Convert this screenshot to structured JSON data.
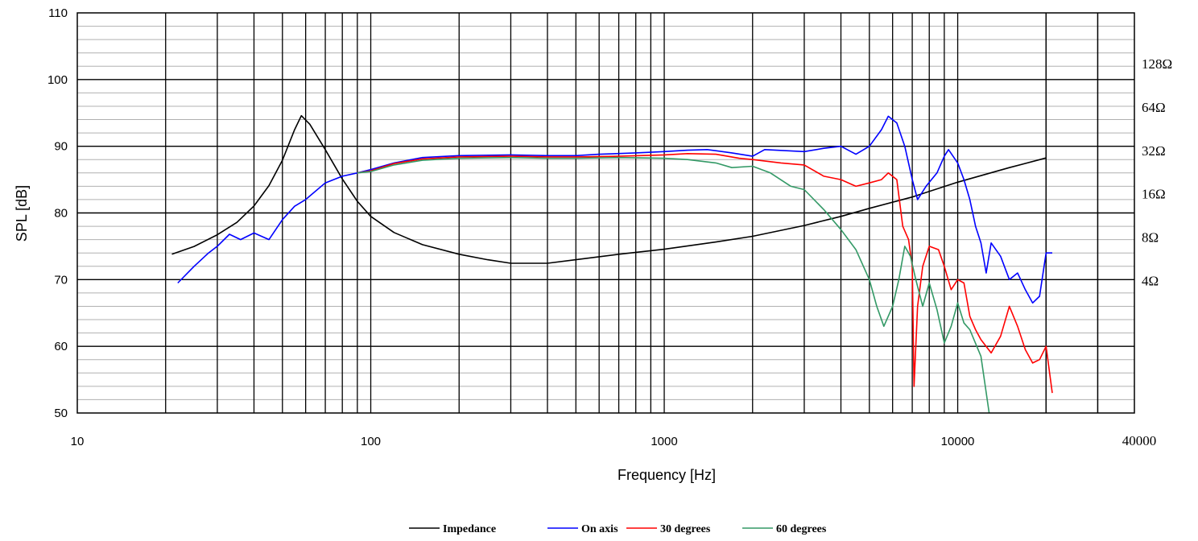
{
  "chart_data": {
    "type": "line",
    "x_scale": "log",
    "xlim": [
      10,
      40000
    ],
    "ylim": [
      50,
      110
    ],
    "xlabel": "Frequency [Hz]",
    "ylabel": "SPL [dB]",
    "x_tick_labels": [
      "10",
      "100",
      "1000",
      "10000",
      "40000"
    ],
    "y_tick_labels": [
      "50",
      "60",
      "70",
      "80",
      "90",
      "100",
      "110"
    ],
    "y2_scale": "log",
    "y2_tick_labels": [
      "4Ω",
      "8Ω",
      "16Ω",
      "32Ω",
      "64Ω",
      "128Ω"
    ],
    "grid": true,
    "legend_position": "bottom",
    "series": [
      {
        "name": "Impedance",
        "color": "#000000",
        "axis": "right",
        "unit": "Ω",
        "points": [
          [
            21,
            6.0
          ],
          [
            25,
            6.8
          ],
          [
            30,
            8.2
          ],
          [
            35,
            10
          ],
          [
            40,
            13
          ],
          [
            45,
            18
          ],
          [
            50,
            27
          ],
          [
            55,
            44
          ],
          [
            58,
            55
          ],
          [
            62,
            48
          ],
          [
            70,
            32
          ],
          [
            80,
            20
          ],
          [
            90,
            14
          ],
          [
            100,
            11
          ],
          [
            120,
            8.5
          ],
          [
            150,
            7.0
          ],
          [
            200,
            6.0
          ],
          [
            250,
            5.5
          ],
          [
            300,
            5.2
          ],
          [
            400,
            5.2
          ],
          [
            500,
            5.5
          ],
          [
            700,
            6.0
          ],
          [
            1000,
            6.5
          ],
          [
            1500,
            7.3
          ],
          [
            2000,
            8.0
          ],
          [
            3000,
            9.5
          ],
          [
            4000,
            11
          ],
          [
            5000,
            12.5
          ],
          [
            7000,
            15
          ],
          [
            10000,
            19
          ],
          [
            15000,
            24
          ],
          [
            20000,
            28
          ]
        ]
      },
      {
        "name": "On axis",
        "color": "#0000ff",
        "axis": "left",
        "points": [
          [
            22,
            69.5
          ],
          [
            25,
            72
          ],
          [
            28,
            74
          ],
          [
            30,
            75
          ],
          [
            33,
            76.8
          ],
          [
            36,
            76
          ],
          [
            40,
            77
          ],
          [
            45,
            76
          ],
          [
            50,
            79
          ],
          [
            55,
            81
          ],
          [
            60,
            82
          ],
          [
            70,
            84.5
          ],
          [
            80,
            85.5
          ],
          [
            90,
            86
          ],
          [
            100,
            86.5
          ],
          [
            120,
            87.5
          ],
          [
            150,
            88.3
          ],
          [
            200,
            88.6
          ],
          [
            300,
            88.7
          ],
          [
            400,
            88.6
          ],
          [
            500,
            88.6
          ],
          [
            600,
            88.8
          ],
          [
            800,
            89
          ],
          [
            1000,
            89.2
          ],
          [
            1200,
            89.4
          ],
          [
            1400,
            89.5
          ],
          [
            1700,
            89
          ],
          [
            2000,
            88.5
          ],
          [
            2200,
            89.5
          ],
          [
            3000,
            89.2
          ],
          [
            3500,
            89.7
          ],
          [
            4000,
            90
          ],
          [
            4500,
            88.8
          ],
          [
            5000,
            90
          ],
          [
            5500,
            92.5
          ],
          [
            5800,
            94.5
          ],
          [
            6200,
            93.5
          ],
          [
            6600,
            90
          ],
          [
            7000,
            85
          ],
          [
            7300,
            82
          ],
          [
            7800,
            84
          ],
          [
            8500,
            86
          ],
          [
            9000,
            88.5
          ],
          [
            9300,
            89.5
          ],
          [
            10000,
            87.5
          ],
          [
            10500,
            85
          ],
          [
            11000,
            82
          ],
          [
            11500,
            78
          ],
          [
            12000,
            75.5
          ],
          [
            12500,
            71
          ],
          [
            13000,
            75.5
          ],
          [
            14000,
            73.5
          ],
          [
            15000,
            70
          ],
          [
            16000,
            71
          ],
          [
            17000,
            68.5
          ],
          [
            18000,
            66.5
          ],
          [
            19000,
            67.5
          ],
          [
            20000,
            74
          ],
          [
            21000,
            74
          ]
        ]
      },
      {
        "name": "30 degrees",
        "color": "#ff0000",
        "axis": "left",
        "points": [
          [
            90,
            86
          ],
          [
            100,
            86.3
          ],
          [
            120,
            87.4
          ],
          [
            150,
            88.1
          ],
          [
            200,
            88.4
          ],
          [
            300,
            88.5
          ],
          [
            400,
            88.4
          ],
          [
            500,
            88.4
          ],
          [
            700,
            88.5
          ],
          [
            1000,
            88.7
          ],
          [
            1200,
            88.9
          ],
          [
            1500,
            88.8
          ],
          [
            1800,
            88.2
          ],
          [
            2000,
            88
          ],
          [
            2500,
            87.5
          ],
          [
            3000,
            87.2
          ],
          [
            3500,
            85.5
          ],
          [
            4000,
            85
          ],
          [
            4500,
            84
          ],
          [
            5000,
            84.5
          ],
          [
            5500,
            85
          ],
          [
            5800,
            86
          ],
          [
            6200,
            85
          ],
          [
            6500,
            78
          ],
          [
            6800,
            76
          ],
          [
            7000,
            72
          ],
          [
            7100,
            54
          ],
          [
            7300,
            66
          ],
          [
            7600,
            72
          ],
          [
            8000,
            75
          ],
          [
            8600,
            74.5
          ],
          [
            9000,
            72
          ],
          [
            9500,
            68.5
          ],
          [
            10000,
            70
          ],
          [
            10500,
            69.5
          ],
          [
            11000,
            64.5
          ],
          [
            11500,
            62.5
          ],
          [
            12000,
            61
          ],
          [
            13000,
            59
          ],
          [
            14000,
            61.5
          ],
          [
            15000,
            66
          ],
          [
            16000,
            63
          ],
          [
            17000,
            59.5
          ],
          [
            18000,
            57.5
          ],
          [
            19000,
            58
          ],
          [
            20000,
            60
          ],
          [
            21000,
            53
          ]
        ]
      },
      {
        "name": "60 degrees",
        "color": "#339966",
        "axis": "left",
        "points": [
          [
            90,
            86
          ],
          [
            100,
            86.2
          ],
          [
            120,
            87.2
          ],
          [
            150,
            87.9
          ],
          [
            200,
            88.2
          ],
          [
            300,
            88.3
          ],
          [
            400,
            88.2
          ],
          [
            500,
            88.2
          ],
          [
            700,
            88.3
          ],
          [
            1000,
            88.2
          ],
          [
            1200,
            88
          ],
          [
            1500,
            87.5
          ],
          [
            1700,
            86.8
          ],
          [
            2000,
            87
          ],
          [
            2300,
            86
          ],
          [
            2700,
            84
          ],
          [
            3000,
            83.5
          ],
          [
            3500,
            80.5
          ],
          [
            4000,
            77.5
          ],
          [
            4500,
            74.5
          ],
          [
            5000,
            70
          ],
          [
            5300,
            66
          ],
          [
            5600,
            63
          ],
          [
            6000,
            66
          ],
          [
            6300,
            70
          ],
          [
            6600,
            75
          ],
          [
            6900,
            73.5
          ],
          [
            7200,
            70
          ],
          [
            7600,
            66
          ],
          [
            8000,
            69.5
          ],
          [
            8500,
            65.5
          ],
          [
            9000,
            60.5
          ],
          [
            9500,
            63
          ],
          [
            10000,
            66.5
          ],
          [
            10500,
            63.5
          ],
          [
            11000,
            62.5
          ],
          [
            12000,
            58.5
          ],
          [
            12800,
            50
          ]
        ]
      }
    ]
  }
}
